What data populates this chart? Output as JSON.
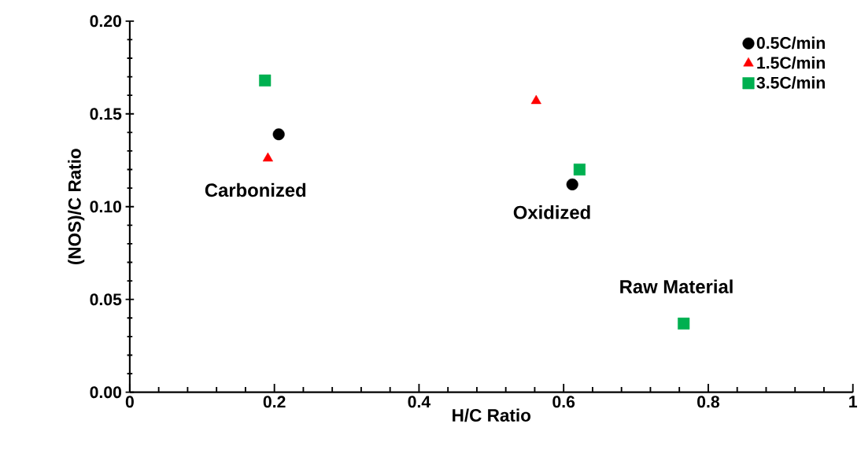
{
  "chart_data": {
    "type": "scatter",
    "xlabel": "H/C Ratio",
    "ylabel": "(NOS)/C Ratio",
    "xlim": [
      0,
      1
    ],
    "xticks": [
      0,
      0.2,
      0.4,
      0.6,
      0.8,
      1
    ],
    "ylim": [
      0,
      0.2
    ],
    "yticks": [
      {
        "value": 0,
        "label": "0.00"
      },
      0.05,
      {
        "value": 0.1,
        "label": "0.10"
      },
      0.15,
      {
        "value": 0.2,
        "label": "0.20"
      }
    ],
    "series": [
      {
        "name": "0.5C/min",
        "color": "#000000",
        "marker": "circle",
        "x": [
          0.206,
          0.612
        ],
        "values": [
          0.139,
          0.112
        ]
      },
      {
        "name": "1.5C/min",
        "color": "#ff0000",
        "marker": "triangle",
        "x": [
          0.191,
          0.562
        ],
        "values": [
          0.126,
          0.157
        ]
      },
      {
        "name": "3.5C/min",
        "color": "#00b050",
        "marker": "square",
        "x": [
          0.187,
          0.622,
          0.766
        ],
        "values": [
          0.168,
          0.12,
          0.037
        ]
      }
    ],
    "annotations": [
      "Carbonized",
      "Oxidized",
      "Raw Material"
    ],
    "legend": "top right",
    "grid": false
  }
}
